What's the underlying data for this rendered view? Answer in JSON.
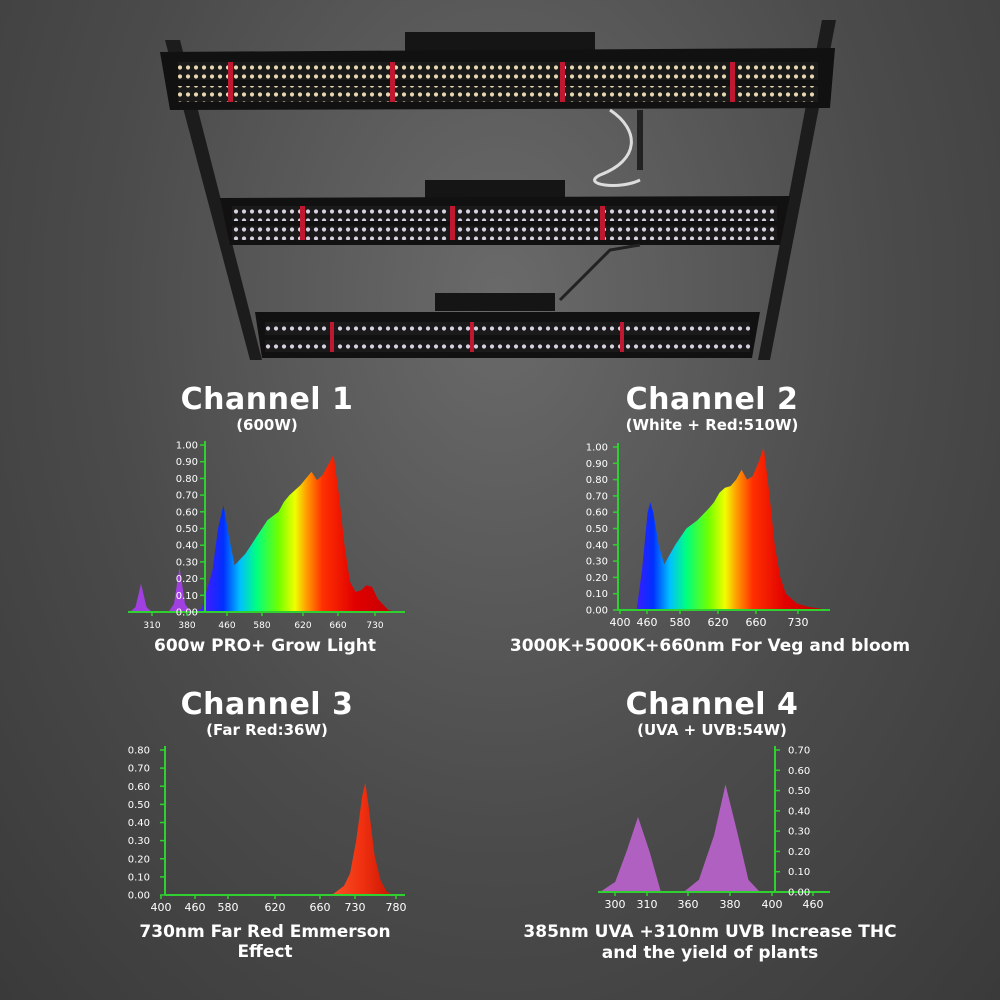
{
  "channels": [
    {
      "title": "Channel 1",
      "subtitle": "(600W)",
      "caption": "600w PRO+ Grow Light",
      "chart_data": {
        "type": "area",
        "x_ticks": [
          "310",
          "380",
          "460",
          "580",
          "620",
          "660",
          "730"
        ],
        "y_ticks": [
          "1.00",
          "0.90",
          "0.80",
          "0.70",
          "0.60",
          "0.50",
          "0.40",
          "0.30",
          "0.20",
          "0.10",
          "0.00"
        ],
        "ylim": [
          0,
          1
        ],
        "series": [
          {
            "x": [
              290,
              300,
              310,
              320,
              330
            ],
            "y": [
              0,
              0.03,
              0.17,
              0.03,
              0
            ]
          },
          {
            "x": [
              360,
              370,
              380,
              390,
              400
            ],
            "y": [
              0,
              0.05,
              0.27,
              0.05,
              0
            ]
          },
          {
            "x": [
              400,
              420,
              440,
              450,
              460,
              470,
              480,
              500,
              520,
              540,
              560,
              570,
              580,
              590,
              600,
              610,
              620,
              630,
              640,
              650,
              660,
              670,
              680,
              690,
              700,
              710,
              720,
              730,
              740,
              760,
              780
            ],
            "y": [
              0,
              0.02,
              0.25,
              0.5,
              0.64,
              0.45,
              0.28,
              0.35,
              0.45,
              0.55,
              0.6,
              0.66,
              0.7,
              0.73,
              0.76,
              0.8,
              0.84,
              0.79,
              0.82,
              0.88,
              0.94,
              0.7,
              0.4,
              0.18,
              0.12,
              0.13,
              0.16,
              0.15,
              0.08,
              0.01,
              0
            ]
          }
        ]
      }
    },
    {
      "title": "Channel 2",
      "subtitle": "(White + Red:510W)",
      "caption": "3000K+5000K+660nm For Veg and bloom",
      "chart_data": {
        "type": "area",
        "x_ticks": [
          "400",
          "460",
          "580",
          "620",
          "660",
          "730"
        ],
        "y_ticks": [
          "1.00",
          "0.90",
          "0.80",
          "0.70",
          "0.60",
          "0.50",
          "0.40",
          "0.30",
          "0.20",
          "0.10",
          "0.00"
        ],
        "ylim": [
          0,
          1
        ],
        "series": [
          {
            "x": [
              430,
              440,
              450,
              455,
              460,
              470,
              480,
              500,
              520,
              540,
              560,
              570,
              580,
              590,
              600,
              610,
              620,
              630,
              640,
              650,
              660,
              670,
              680,
              690,
              700,
              720,
              740,
              760,
              780
            ],
            "y": [
              0,
              0.25,
              0.6,
              0.66,
              0.6,
              0.4,
              0.28,
              0.4,
              0.5,
              0.55,
              0.62,
              0.66,
              0.72,
              0.75,
              0.76,
              0.8,
              0.86,
              0.8,
              0.82,
              0.9,
              1.0,
              0.72,
              0.4,
              0.2,
              0.1,
              0.04,
              0.02,
              0.01,
              0
            ]
          }
        ]
      }
    },
    {
      "title": "Channel 3",
      "subtitle": "(Far Red:36W)",
      "caption": "730nm Far Red Emmerson Effect",
      "chart_data": {
        "type": "area",
        "x_ticks": [
          "400",
          "460",
          "580",
          "620",
          "660",
          "730",
          "780"
        ],
        "y_ticks": [
          "0.80",
          "0.70",
          "0.60",
          "0.50",
          "0.40",
          "0.30",
          "0.20",
          "0.10",
          "0.00"
        ],
        "ylim": [
          0,
          0.8
        ],
        "series": [
          {
            "x": [
              670,
              690,
              700,
              710,
              720,
              725,
              730,
              740,
              750,
              760,
              770
            ],
            "y": [
              0,
              0.05,
              0.12,
              0.3,
              0.55,
              0.62,
              0.5,
              0.22,
              0.08,
              0.02,
              0
            ]
          }
        ]
      }
    },
    {
      "title": "Channel 4",
      "subtitle": "(UVA + UVB:54W)",
      "caption": "385nm UVA +310nm UVB Increase THC\nand the yield of plants",
      "chart_data": {
        "type": "area",
        "x_ticks": [
          "300",
          "310",
          "360",
          "380",
          "400",
          "460"
        ],
        "y_ticks": [
          "0.70",
          "0.60",
          "0.50",
          "0.40",
          "0.30",
          "0.20",
          "0.10",
          "0.00"
        ],
        "ylim": [
          0,
          0.7
        ],
        "series": [
          {
            "x": [
              0,
              0.4,
              0.7,
              1.0,
              1.3,
              1.6
            ],
            "y": [
              0,
              0.05,
              0.2,
              0.37,
              0.2,
              0
            ]
          },
          {
            "x": [
              2.2,
              2.6,
              3.0,
              3.3,
              3.6,
              3.9,
              4.2
            ],
            "y": [
              0,
              0.06,
              0.28,
              0.53,
              0.3,
              0.06,
              0
            ]
          }
        ]
      }
    }
  ]
}
